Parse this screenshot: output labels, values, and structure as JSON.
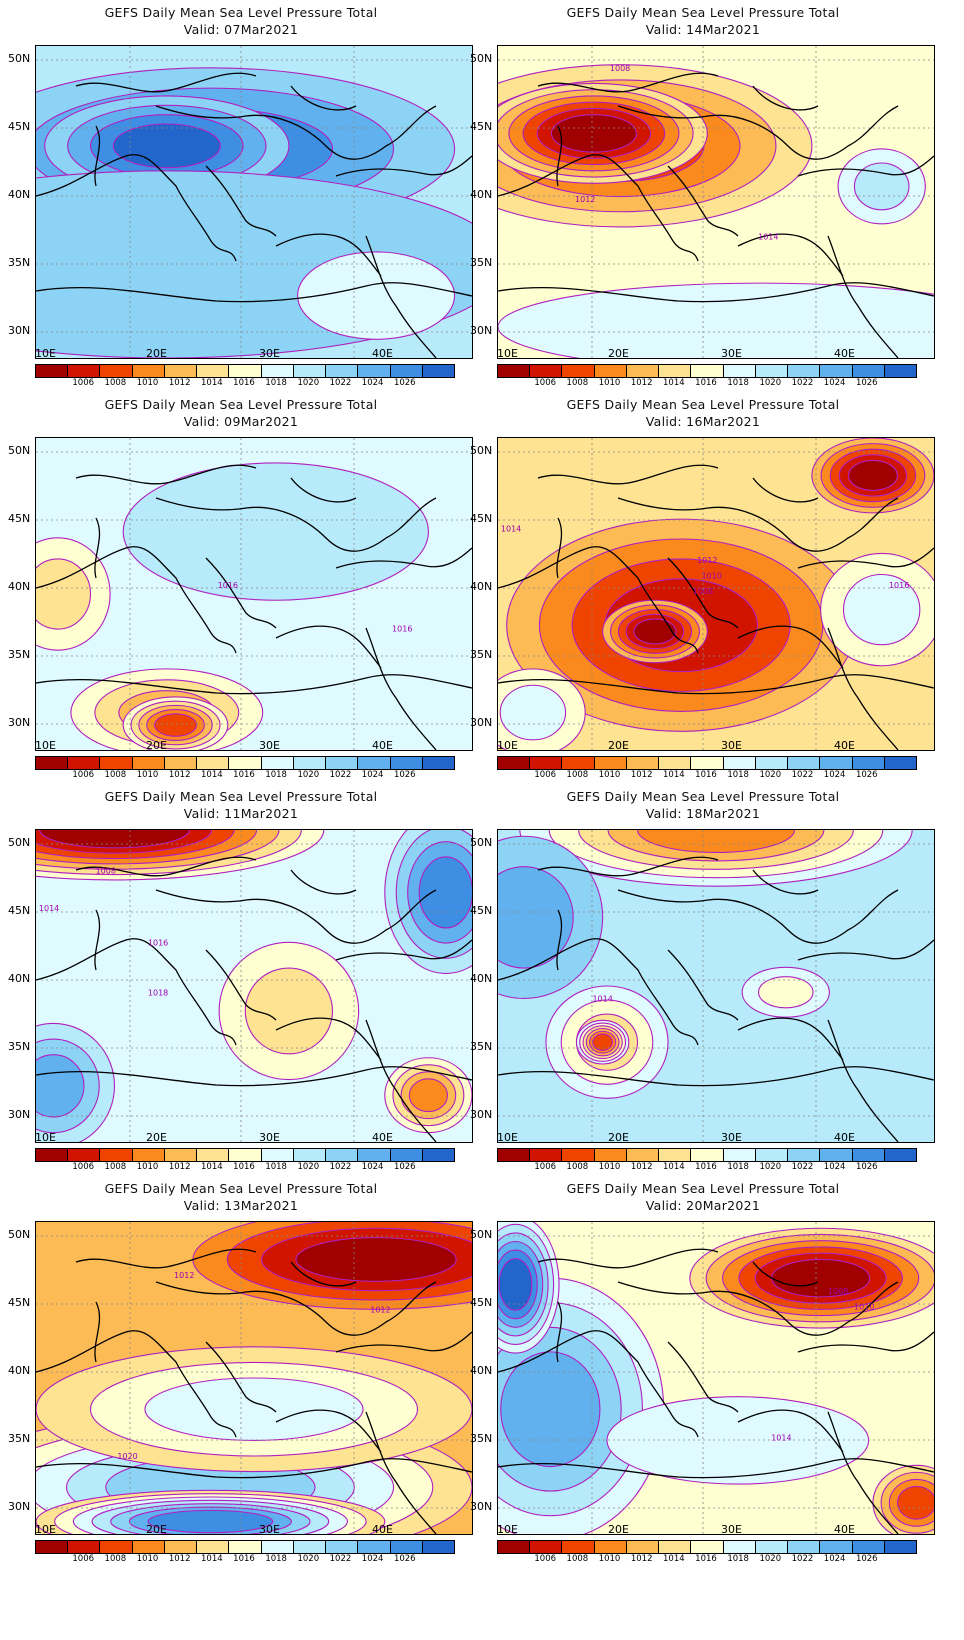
{
  "title": "GEFS Daily Mean Sea Level Pressure Total",
  "lat_labels": [
    "50N",
    "45N",
    "40N",
    "35N",
    "30N"
  ],
  "lon_labels": [
    "10E",
    "20E",
    "30E",
    "40E"
  ],
  "colorbar": {
    "labels": [
      "1006",
      "1008",
      "1010",
      "1012",
      "1014",
      "1016",
      "1018",
      "1020",
      "1022",
      "1024",
      "1026"
    ],
    "colors": [
      "#a10000",
      "#d11400",
      "#ee4400",
      "#fb8a1e",
      "#fdbb55",
      "#fee392",
      "#ffffd1",
      "#dffbff",
      "#b7ebfb",
      "#8dd3f6",
      "#62b1ef",
      "#3e8ee4",
      "#2266cc"
    ]
  },
  "panels": [
    {
      "valid": "Valid: 07Mar2021",
      "base": 8,
      "blobs": [
        {
          "cx": 40,
          "cy": 33,
          "rx": 56,
          "ry": 26,
          "level": 11
        },
        {
          "cx": 30,
          "cy": 32,
          "rx": 28,
          "ry": 16,
          "level": 12
        },
        {
          "cx": 30,
          "cy": 70,
          "rx": 78,
          "ry": 30,
          "level": 9
        },
        {
          "cx": 78,
          "cy": 80,
          "rx": 18,
          "ry": 14,
          "level": 7
        }
      ],
      "labels": []
    },
    {
      "valid": "Valid: 14Mar2021",
      "base": 6,
      "blobs": [
        {
          "cx": 28,
          "cy": 32,
          "rx": 44,
          "ry": 26,
          "level": 2
        },
        {
          "cx": 22,
          "cy": 28,
          "rx": 26,
          "ry": 16,
          "level": 0
        },
        {
          "cx": 88,
          "cy": 45,
          "rx": 10,
          "ry": 12,
          "level": 8
        },
        {
          "cx": 60,
          "cy": 90,
          "rx": 60,
          "ry": 14,
          "level": 7
        }
      ],
      "labels": [
        {
          "x": 28,
          "y": 8,
          "t": "1008"
        },
        {
          "x": 20,
          "y": 50,
          "t": "1012"
        },
        {
          "x": 62,
          "y": 62,
          "t": "1014"
        }
      ]
    },
    {
      "valid": "Valid: 09Mar2021",
      "base": 7,
      "blobs": [
        {
          "cx": 55,
          "cy": 30,
          "rx": 35,
          "ry": 22,
          "level": 8
        },
        {
          "cx": 30,
          "cy": 88,
          "rx": 22,
          "ry": 14,
          "level": 4
        },
        {
          "cx": 32,
          "cy": 92,
          "rx": 12,
          "ry": 9,
          "level": 2
        },
        {
          "cx": 5,
          "cy": 50,
          "rx": 12,
          "ry": 18,
          "level": 5
        }
      ],
      "labels": [
        {
          "x": 44,
          "y": 48,
          "t": "1016"
        },
        {
          "x": 84,
          "y": 62,
          "t": "1016"
        }
      ]
    },
    {
      "valid": "Valid: 16Mar2021",
      "base": 5,
      "blobs": [
        {
          "cx": 42,
          "cy": 60,
          "rx": 40,
          "ry": 34,
          "level": 1
        },
        {
          "cx": 36,
          "cy": 62,
          "rx": 12,
          "ry": 10,
          "level": 0
        },
        {
          "cx": 86,
          "cy": 12,
          "rx": 14,
          "ry": 12,
          "level": 0
        },
        {
          "cx": 88,
          "cy": 55,
          "rx": 14,
          "ry": 18,
          "level": 7
        },
        {
          "cx": 8,
          "cy": 88,
          "rx": 12,
          "ry": 14,
          "level": 7
        }
      ],
      "labels": [
        {
          "x": 3,
          "y": 30,
          "t": "1014"
        },
        {
          "x": 48,
          "y": 40,
          "t": "1012"
        },
        {
          "x": 49,
          "y": 45,
          "t": "1010"
        },
        {
          "x": 47,
          "y": 50,
          "t": "1008"
        },
        {
          "x": 92,
          "y": 48,
          "t": "1016"
        }
      ]
    },
    {
      "valid": "Valid: 11Mar2021",
      "base": 7,
      "blobs": [
        {
          "cx": 18,
          "cy": 0,
          "rx": 48,
          "ry": 16,
          "level": 0
        },
        {
          "cx": 94,
          "cy": 20,
          "rx": 14,
          "ry": 26,
          "level": 11
        },
        {
          "cx": 4,
          "cy": 82,
          "rx": 14,
          "ry": 20,
          "level": 10
        },
        {
          "cx": 90,
          "cy": 85,
          "rx": 10,
          "ry": 12,
          "level": 3
        },
        {
          "cx": 58,
          "cy": 58,
          "rx": 16,
          "ry": 22,
          "level": 5
        }
      ],
      "labels": [
        {
          "x": 16,
          "y": 14,
          "t": "1008"
        },
        {
          "x": 3,
          "y": 26,
          "t": "1014"
        },
        {
          "x": 28,
          "y": 37,
          "t": "1016"
        },
        {
          "x": 28,
          "y": 53,
          "t": "1018"
        }
      ]
    },
    {
      "valid": "Valid: 18Mar2021",
      "base": 8,
      "blobs": [
        {
          "cx": 50,
          "cy": 0,
          "rx": 45,
          "ry": 18,
          "level": 3
        },
        {
          "cx": 25,
          "cy": 68,
          "rx": 14,
          "ry": 18,
          "level": 5
        },
        {
          "cx": 24,
          "cy": 68,
          "rx": 6,
          "ry": 7,
          "level": 2
        },
        {
          "cx": 66,
          "cy": 52,
          "rx": 10,
          "ry": 8,
          "level": 6
        },
        {
          "cx": 6,
          "cy": 28,
          "rx": 18,
          "ry": 26,
          "level": 10
        }
      ],
      "labels": [
        {
          "x": 24,
          "y": 55,
          "t": "1014"
        }
      ]
    },
    {
      "valid": "Valid: 13Mar2021",
      "base": 4,
      "blobs": [
        {
          "cx": 78,
          "cy": 12,
          "rx": 42,
          "ry": 16,
          "level": 0
        },
        {
          "cx": 40,
          "cy": 85,
          "rx": 60,
          "ry": 24,
          "level": 9
        },
        {
          "cx": 40,
          "cy": 96,
          "rx": 40,
          "ry": 10,
          "level": 11
        },
        {
          "cx": 50,
          "cy": 60,
          "rx": 50,
          "ry": 20,
          "level": 7
        }
      ],
      "labels": [
        {
          "x": 34,
          "y": 18,
          "t": "1012"
        },
        {
          "x": 79,
          "y": 29,
          "t": "1012"
        },
        {
          "x": 21,
          "y": 76,
          "t": "1020"
        }
      ]
    },
    {
      "valid": "Valid: 20Mar2021",
      "base": 6,
      "blobs": [
        {
          "cx": 74,
          "cy": 18,
          "rx": 30,
          "ry": 16,
          "level": 0
        },
        {
          "cx": 12,
          "cy": 60,
          "rx": 26,
          "ry": 42,
          "level": 10
        },
        {
          "cx": 4,
          "cy": 20,
          "rx": 10,
          "ry": 22,
          "level": 12
        },
        {
          "cx": 96,
          "cy": 90,
          "rx": 10,
          "ry": 12,
          "level": 2
        },
        {
          "cx": 55,
          "cy": 70,
          "rx": 30,
          "ry": 14,
          "level": 7
        }
      ],
      "labels": [
        {
          "x": 78,
          "y": 23,
          "t": "1008"
        },
        {
          "x": 84,
          "y": 28,
          "t": "1010"
        },
        {
          "x": 65,
          "y": 70,
          "t": "1014"
        }
      ]
    }
  ]
}
